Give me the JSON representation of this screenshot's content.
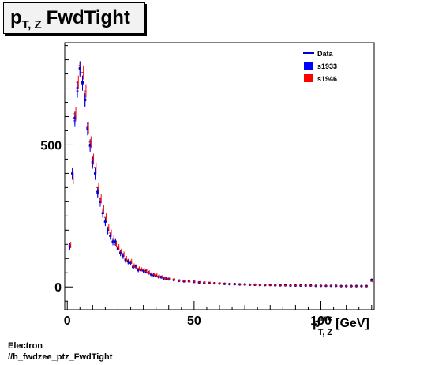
{
  "title": {
    "main": "p",
    "subscript": "T, Z",
    "rest": "FwdTight"
  },
  "footer": {
    "line1": "Electron",
    "line2": "//h_fwdzee_ptz_FwdTight"
  },
  "chart_data": {
    "type": "scatter",
    "title": "p_{T, Z} FwdTight",
    "xlabel": {
      "main": "p",
      "superscript": "rec",
      "subscript": "T, Z",
      "unit": "[GeV]"
    },
    "ylabel": "",
    "xlim": [
      -1,
      121
    ],
    "ylim": [
      -80,
      860
    ],
    "x_ticks": [
      0,
      50,
      100
    ],
    "y_ticks": [
      0,
      500
    ],
    "grid": false,
    "legend": {
      "position": "top-right",
      "entries": [
        {
          "name": "Data",
          "color": "#0000cc",
          "style": "line"
        },
        {
          "name": "s1933",
          "color": "#0000ff",
          "style": "box"
        },
        {
          "name": "s1946",
          "color": "#ff0000",
          "style": "box"
        }
      ]
    },
    "series": [
      {
        "name": "Data",
        "color": "#00007a",
        "x": [
          1,
          2,
          3,
          4,
          5,
          6,
          7,
          8,
          9,
          10,
          11,
          12,
          13,
          14,
          15,
          16,
          17,
          18,
          19,
          20,
          21,
          22,
          23,
          24,
          25,
          26,
          27,
          28,
          29,
          30,
          31,
          32,
          33,
          34,
          35,
          36,
          37,
          38,
          39,
          40,
          42,
          44,
          46,
          48,
          50,
          52,
          54,
          56,
          58,
          60,
          62,
          64,
          66,
          68,
          70,
          72,
          74,
          76,
          78,
          80,
          82,
          84,
          86,
          88,
          90,
          92,
          94,
          96,
          98,
          100,
          102,
          104,
          106,
          108,
          110,
          112,
          114,
          116,
          118,
          120
        ],
        "y": [
          145,
          400,
          595,
          700,
          770,
          720,
          660,
          560,
          500,
          440,
          400,
          335,
          300,
          260,
          230,
          200,
          180,
          160,
          160,
          135,
          120,
          110,
          95,
          90,
          85,
          70,
          72,
          60,
          60,
          58,
          55,
          50,
          45,
          42,
          40,
          36,
          35,
          30,
          30,
          28,
          25,
          22,
          20,
          20,
          18,
          16,
          15,
          14,
          13,
          12,
          11,
          10,
          10,
          9,
          9,
          8,
          8,
          7,
          7,
          7,
          6,
          6,
          6,
          5,
          5,
          5,
          5,
          5,
          4,
          4,
          4,
          4,
          4,
          3,
          3,
          3,
          3,
          3,
          3,
          25
        ]
      },
      {
        "name": "s1933",
        "color": "#0000ff",
        "x": [
          1,
          2,
          3,
          4,
          5,
          6,
          7,
          8,
          9,
          10,
          11,
          12,
          13,
          14,
          15,
          16,
          17,
          18,
          19,
          20,
          21,
          22,
          23,
          24,
          25,
          26,
          27,
          28,
          29,
          30,
          31,
          32,
          33,
          34,
          35,
          36,
          37,
          38,
          39,
          40,
          42,
          44,
          46,
          48,
          50,
          52,
          54,
          56,
          58,
          60,
          62,
          64,
          66,
          68,
          70,
          72,
          74,
          76,
          78,
          80,
          82,
          84,
          86,
          88,
          90,
          92,
          94,
          96,
          98,
          100,
          102,
          104,
          106,
          108,
          110,
          112,
          114,
          116,
          118,
          120
        ],
        "y": [
          140,
          395,
          585,
          690,
          765,
          715,
          655,
          555,
          495,
          435,
          395,
          330,
          298,
          258,
          228,
          198,
          178,
          158,
          156,
          133,
          118,
          108,
          94,
          88,
          84,
          69,
          70,
          59,
          59,
          57,
          54,
          49,
          44,
          41,
          39,
          35,
          34,
          29,
          29,
          27,
          24,
          21,
          19,
          19,
          17,
          15,
          14,
          13,
          12,
          11,
          10,
          9,
          9,
          8,
          8,
          7,
          7,
          6,
          6,
          6,
          5,
          5,
          5,
          4,
          4,
          4,
          4,
          4,
          3,
          3,
          3,
          3,
          3,
          2,
          2,
          2,
          2,
          2,
          2,
          22
        ]
      },
      {
        "name": "s1946",
        "color": "#ff0000",
        "x": [
          1,
          2,
          3,
          4,
          5,
          6,
          7,
          8,
          9,
          10,
          11,
          12,
          13,
          14,
          15,
          16,
          17,
          18,
          19,
          20,
          21,
          22,
          23,
          24,
          25,
          26,
          27,
          28,
          29,
          30,
          31,
          32,
          33,
          34,
          35,
          36,
          37,
          38,
          39,
          40,
          42,
          44,
          46,
          48,
          50,
          52,
          54,
          56,
          58,
          60,
          62,
          64,
          66,
          68,
          70,
          72,
          74,
          76,
          78,
          80,
          82,
          84,
          86,
          88,
          90,
          92,
          94,
          96,
          98,
          100,
          102,
          104,
          106,
          108,
          110,
          112,
          114,
          116,
          118,
          120
        ],
        "y": [
          148,
          380,
          610,
          720,
          780,
          755,
          690,
          560,
          510,
          450,
          420,
          350,
          310,
          275,
          245,
          210,
          190,
          170,
          150,
          140,
          125,
          115,
          100,
          95,
          90,
          75,
          70,
          65,
          62,
          60,
          55,
          52,
          47,
          44,
          42,
          38,
          36,
          32,
          30,
          28,
          26,
          23,
          21,
          20,
          18,
          17,
          16,
          15,
          14,
          13,
          12,
          11,
          10,
          9,
          9,
          8,
          8,
          7,
          7,
          6,
          6,
          6,
          5,
          5,
          5,
          5,
          5,
          4,
          4,
          4,
          4,
          4,
          4,
          3,
          3,
          3,
          3,
          3,
          3,
          20
        ]
      }
    ]
  }
}
